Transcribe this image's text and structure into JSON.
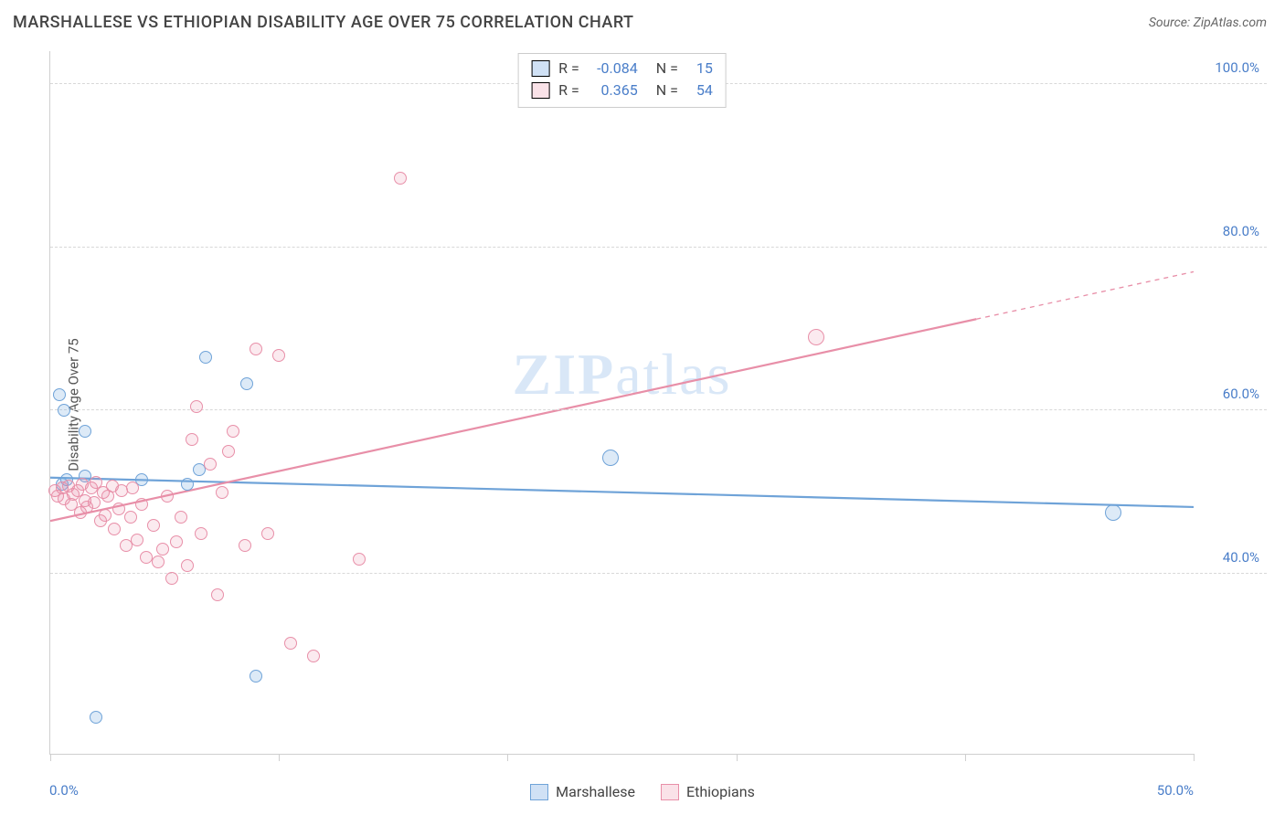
{
  "title": "MARSHALLESE VS ETHIOPIAN DISABILITY AGE OVER 75 CORRELATION CHART",
  "source_label": "Source: ",
  "source_value": "ZipAtlas.com",
  "ylabel": "Disability Age Over 75",
  "watermark_a": "ZIP",
  "watermark_b": "atlas",
  "chart": {
    "type": "scatter",
    "xlim": [
      0,
      50
    ],
    "ylim": [
      18,
      104
    ],
    "x_ticks": [
      0,
      10,
      20,
      30,
      40,
      50
    ],
    "x_tick_labels": {
      "0": "0.0%",
      "50": "50.0%"
    },
    "y_gridlines": [
      40,
      60,
      80,
      100
    ],
    "y_tick_labels": [
      "40.0%",
      "60.0%",
      "80.0%",
      "100.0%"
    ],
    "grid_color": "#d8d8d8",
    "axis_color": "#cfcfcf",
    "background_color": "#ffffff",
    "label_color": "#4a7ec9",
    "marker_radius_default": 7,
    "series": [
      {
        "name": "Marshallese",
        "color_fill": "rgba(120,170,225,0.25)",
        "color_stroke": "#6fa3d8",
        "points": [
          [
            0.4,
            62
          ],
          [
            0.6,
            60
          ],
          [
            1.5,
            57.5
          ],
          [
            0.5,
            51
          ],
          [
            0.7,
            51.5
          ],
          [
            1.5,
            52
          ],
          [
            4.0,
            51.5
          ],
          [
            6.5,
            52.8
          ],
          [
            6.8,
            66.5
          ],
          [
            8.6,
            63.3
          ],
          [
            9.0,
            27.5
          ],
          [
            2.0,
            22.5
          ],
          [
            24.5,
            54.2
          ],
          [
            46.5,
            47.5
          ],
          [
            6.0,
            51
          ]
        ],
        "large_points_idx": [
          12,
          13
        ],
        "trend": {
          "x1": 0,
          "y1": 51.8,
          "x2": 50,
          "y2": 48.2,
          "width": 2.2,
          "dash_after_x": null
        }
      },
      {
        "name": "Ethiopians",
        "color_fill": "rgba(235,140,165,0.18)",
        "color_stroke": "#e88fa8",
        "points": [
          [
            0.2,
            50.2
          ],
          [
            0.3,
            49.5
          ],
          [
            0.5,
            50.5
          ],
          [
            0.6,
            49.2
          ],
          [
            0.8,
            50.8
          ],
          [
            0.9,
            48.5
          ],
          [
            1.0,
            49.8
          ],
          [
            1.2,
            50.2
          ],
          [
            1.3,
            47.5
          ],
          [
            1.4,
            51
          ],
          [
            1.5,
            49
          ],
          [
            1.6,
            48.2
          ],
          [
            1.8,
            50.5
          ],
          [
            1.9,
            48.8
          ],
          [
            2.0,
            51.2
          ],
          [
            2.2,
            46.5
          ],
          [
            2.3,
            50
          ],
          [
            2.4,
            47.2
          ],
          [
            2.5,
            49.5
          ],
          [
            2.7,
            50.8
          ],
          [
            2.8,
            45.5
          ],
          [
            3.0,
            48
          ],
          [
            3.1,
            50.2
          ],
          [
            3.3,
            43.5
          ],
          [
            3.5,
            47
          ],
          [
            3.6,
            50.5
          ],
          [
            3.8,
            44.2
          ],
          [
            4.0,
            48.5
          ],
          [
            4.2,
            42
          ],
          [
            4.5,
            46
          ],
          [
            4.7,
            41.5
          ],
          [
            4.9,
            43
          ],
          [
            5.1,
            49.5
          ],
          [
            5.3,
            39.5
          ],
          [
            5.5,
            44
          ],
          [
            5.7,
            47
          ],
          [
            6.0,
            41
          ],
          [
            6.2,
            56.5
          ],
          [
            6.4,
            60.5
          ],
          [
            6.6,
            45
          ],
          [
            7.0,
            53.5
          ],
          [
            7.3,
            37.5
          ],
          [
            7.5,
            50
          ],
          [
            7.8,
            55
          ],
          [
            8.0,
            57.5
          ],
          [
            8.5,
            43.5
          ],
          [
            9.0,
            67.5
          ],
          [
            9.5,
            45
          ],
          [
            10.0,
            66.8
          ],
          [
            10.5,
            31.5
          ],
          [
            11.5,
            30
          ],
          [
            13.5,
            41.8
          ],
          [
            15.3,
            88.5
          ],
          [
            33.5,
            69
          ]
        ],
        "large_points_idx": [
          53
        ],
        "trend": {
          "x1": 0,
          "y1": 46.5,
          "x2": 50,
          "y2": 77,
          "width": 2.2,
          "dash_after_x": 40.5
        }
      }
    ]
  },
  "stats": [
    {
      "swatch": "blue",
      "r_label": "R =",
      "r": "-0.084",
      "n_label": "N =",
      "n": "15"
    },
    {
      "swatch": "pink",
      "r_label": "R =",
      "r": "0.365",
      "n_label": "N =",
      "n": "54"
    }
  ],
  "legend": [
    {
      "swatch": "blue",
      "label": "Marshallese"
    },
    {
      "swatch": "pink",
      "label": "Ethiopians"
    }
  ]
}
